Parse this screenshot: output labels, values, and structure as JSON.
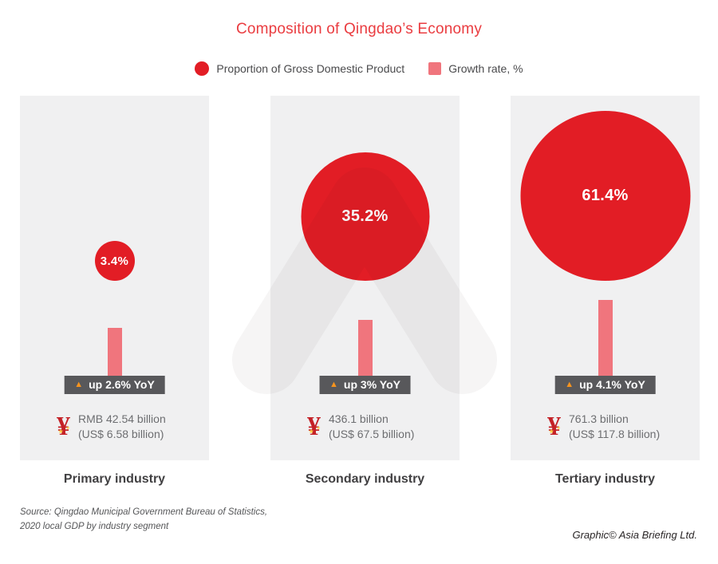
{
  "header": {
    "title": "Composition of Qingdao’s Economy"
  },
  "legend": {
    "items": [
      {
        "label": "Proportion of Gross Domestic Product",
        "marker": "circle",
        "color": "#e21d25"
      },
      {
        "label": "Growth rate, %",
        "marker": "square",
        "color": "#f0757d"
      }
    ]
  },
  "panels": [
    {
      "industry": "Primary industry",
      "share_label": "3.4%",
      "growth_label": "up 2.6% YoY",
      "rmb": "RMB 42.54 billion",
      "usd": "(US$ 6.58 billion)"
    },
    {
      "industry": "Secondary industry",
      "share_label": "35.2%",
      "growth_label": "up 3% YoY",
      "rmb": "436.1 billion",
      "usd": "(US$ 67.5 billion)"
    },
    {
      "industry": "Tertiary industry",
      "share_label": "61.4%",
      "growth_label": "up 4.1% YoY",
      "rmb": "761.3 billion",
      "usd": "(US$ 117.8 billion)"
    }
  ],
  "chart_data": {
    "type": "bar",
    "title": "Composition of Qingdao’s Economy",
    "categories": [
      "Primary industry",
      "Secondary industry",
      "Tertiary industry"
    ],
    "series": [
      {
        "name": "Proportion of Gross Domestic Product, %",
        "values": [
          3.4,
          35.2,
          61.4
        ],
        "encoding": "circle-area",
        "color": "#e21d25"
      },
      {
        "name": "Growth rate, % YoY",
        "values": [
          2.6,
          3.0,
          4.1
        ],
        "encoding": "bar-height",
        "color": "#f0757d"
      }
    ],
    "gdp_value_rmb_billion": [
      42.54,
      436.1,
      761.3
    ],
    "gdp_value_usd_billion": [
      6.58,
      67.5,
      117.8
    ],
    "legend_position": "top",
    "grid": false
  },
  "footer": {
    "source_line1": "Source: Qingdao Municipal Government Bureau of Statistics,",
    "source_line2": "2020 local GDP by industry segment",
    "credit": "Graphic© Asia Briefing Ltd."
  },
  "colors": {
    "title_red": "#ea3c40",
    "circle_red": "#e21d25",
    "growth_pink": "#f0757d",
    "badge_gray": "#58585b",
    "triangle_orange": "#f7941e",
    "panel_bg": "#f0f0f1",
    "yen_red": "#c42127"
  }
}
